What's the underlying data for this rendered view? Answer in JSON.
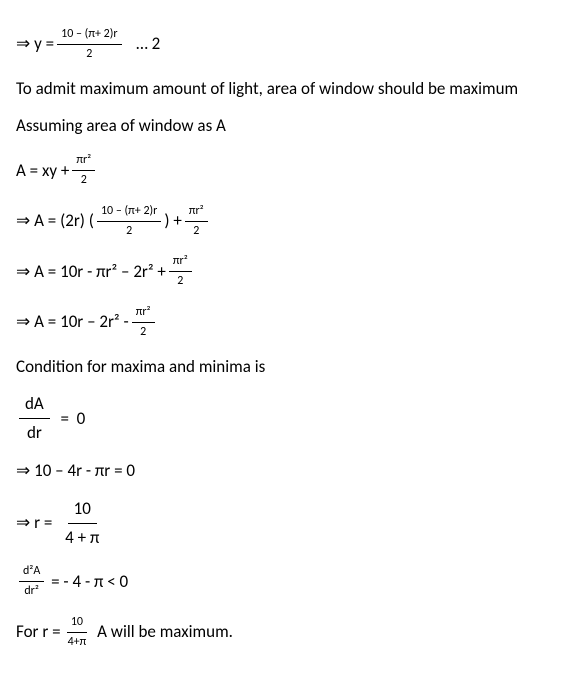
{
  "lines": {
    "l1_pre": "⇒",
    "l1_a": "y =",
    "l1_num": "10 – (π+ 2)r",
    "l1_den": "2",
    "l1_tail": "… 2",
    "l2": "To admit maximum amount of light, area of window should be maximum",
    "l3": "Assuming area of window as A",
    "l4_a": "A = xy +",
    "l4_num": "πr²",
    "l4_den": "2",
    "l5_a": "⇒ A = (2r) (",
    "l5_num1": "10 – (π+ 2)r",
    "l5_den1": "2",
    "l5_mid": ") +",
    "l5_num2": "πr²",
    "l5_den2": "2",
    "l6_a": "⇒ A = 10r - πr² – 2r² +",
    "l6_num": "πr²",
    "l6_den": "2",
    "l7_a": "⇒ A = 10r – 2r² -",
    "l7_num": "πr²",
    "l7_den": "2",
    "l8": "Condition for maxima and minima is",
    "l9_num": "dA",
    "l9_den": "dr",
    "l9_mid": "=",
    "l9_end": "0",
    "l10": "⇒ 10 – 4r - πr = 0",
    "l11_a": "⇒ r  =",
    "l11_num": "10",
    "l11_den": "4 + π",
    "l12_num": "d²A",
    "l12_den": "dr²",
    "l12_tail": "= - 4 - π < 0",
    "l13_a": "For r =",
    "l13_num": "10",
    "l13_den": "4+π",
    "l13_tail": "A will be maximum."
  }
}
